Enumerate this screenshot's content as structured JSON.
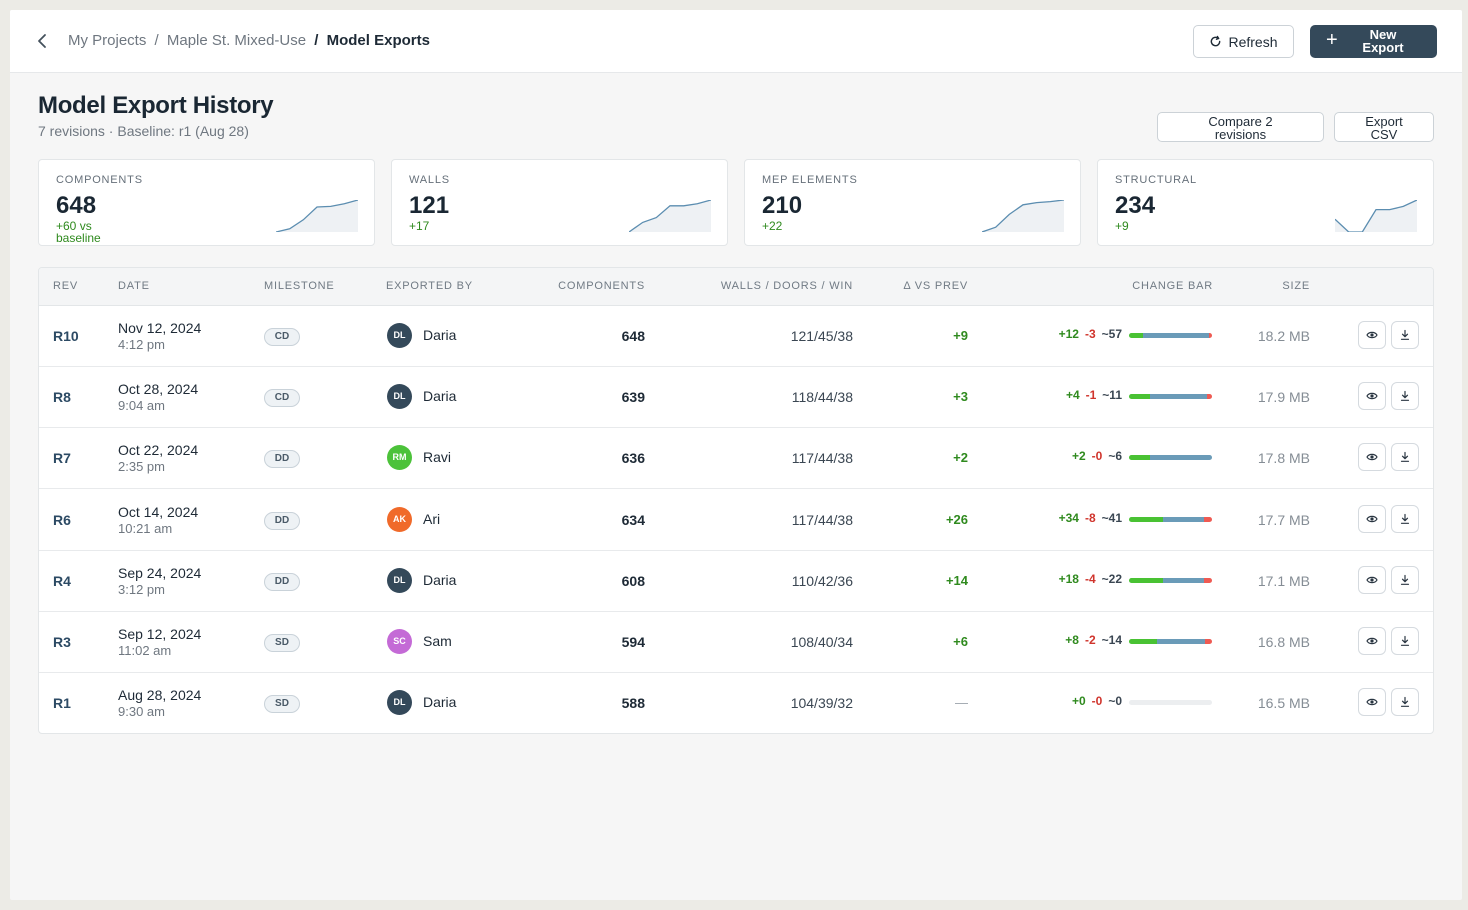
{
  "breadcrumb": {
    "items": [
      "My Projects",
      "Maple St. Mixed-Use"
    ],
    "separator": "/",
    "current": "Model Exports"
  },
  "header": {
    "refresh_label": "Refresh",
    "new_export_line1": "New",
    "new_export_line2": "Export"
  },
  "page": {
    "title": "Model Export History",
    "subtitle": "7 revisions · Baseline: r1 (Aug 28)",
    "compare_line1": "Compare 2",
    "compare_line2": "revisions",
    "csv_line1": "Export",
    "csv_line2": "CSV"
  },
  "stats": [
    {
      "label": "COMPONENTS",
      "value": "648",
      "delta_line1": "+60 vs",
      "delta_line2": "baseline",
      "trend": [
        0.0,
        0.1,
        0.38,
        0.78,
        0.8,
        0.88,
        1.0
      ]
    },
    {
      "label": "WALLS",
      "value": "121",
      "delta_line1": "+17",
      "delta_line2": "",
      "trend": [
        0.0,
        0.3,
        0.45,
        0.82,
        0.82,
        0.88,
        1.0
      ]
    },
    {
      "label": "MEP ELEMENTS",
      "value": "210",
      "delta_line1": "+22",
      "delta_line2": "",
      "trend": [
        0.0,
        0.15,
        0.55,
        0.85,
        0.92,
        0.95,
        1.0
      ]
    },
    {
      "label": "STRUCTURAL",
      "value": "234",
      "delta_line1": "+9",
      "delta_line2": "",
      "trend": [
        0.4,
        0.0,
        0.0,
        0.7,
        0.7,
        0.8,
        1.0
      ]
    }
  ],
  "table": {
    "headers": {
      "rev": "REV",
      "date": "DATE",
      "milestone": "MILESTONE",
      "exported_by": "EXPORTED BY",
      "components": "COMPONENTS",
      "wdw": "WALLS / DOORS / WIN",
      "delta_prev": "Δ VS PREV",
      "change_bar": "CHANGE BAR",
      "size": "SIZE"
    },
    "rows": [
      {
        "rev": "R10",
        "date": "Nov 12, 2024",
        "time": "4:12 pm",
        "milestone": "CD",
        "initials": "DL",
        "avatar_color": "#34495a",
        "name": "Daria",
        "components": "648",
        "wdw": "121/45/38",
        "delta_prev": "+9",
        "added": "+12",
        "removed": "-3",
        "modified": "~57",
        "add_n": 12,
        "rem_n": 3,
        "mod_n": 57,
        "size": "18.2 MB"
      },
      {
        "rev": "R8",
        "date": "Oct 28, 2024",
        "time": "9:04 am",
        "milestone": "CD",
        "initials": "DL",
        "avatar_color": "#34495a",
        "name": "Daria",
        "components": "639",
        "wdw": "118/44/38",
        "delta_prev": "+3",
        "added": "+4",
        "removed": "-1",
        "modified": "~11",
        "add_n": 4,
        "rem_n": 1,
        "mod_n": 11,
        "size": "17.9 MB"
      },
      {
        "rev": "R7",
        "date": "Oct 22, 2024",
        "time": "2:35 pm",
        "milestone": "DD",
        "initials": "RM",
        "avatar_color": "#4cc23a",
        "name": "Ravi",
        "components": "636",
        "wdw": "117/44/38",
        "delta_prev": "+2",
        "added": "+2",
        "removed": "-0",
        "modified": "~6",
        "add_n": 2,
        "rem_n": 0,
        "mod_n": 6,
        "size": "17.8 MB"
      },
      {
        "rev": "R6",
        "date": "Oct 14, 2024",
        "time": "10:21 am",
        "milestone": "DD",
        "initials": "AK",
        "avatar_color": "#f06a2a",
        "name": "Ari",
        "components": "634",
        "wdw": "117/44/38",
        "delta_prev": "+26",
        "added": "+34",
        "removed": "-8",
        "modified": "~41",
        "add_n": 34,
        "rem_n": 8,
        "mod_n": 41,
        "size": "17.7 MB"
      },
      {
        "rev": "R4",
        "date": "Sep 24, 2024",
        "time": "3:12 pm",
        "milestone": "DD",
        "initials": "DL",
        "avatar_color": "#34495a",
        "name": "Daria",
        "components": "608",
        "wdw": "110/42/36",
        "delta_prev": "+14",
        "added": "+18",
        "removed": "-4",
        "modified": "~22",
        "add_n": 18,
        "rem_n": 4,
        "mod_n": 22,
        "size": "17.1 MB"
      },
      {
        "rev": "R3",
        "date": "Sep 12, 2024",
        "time": "11:02 am",
        "milestone": "SD",
        "initials": "SC",
        "avatar_color": "#c46ad6",
        "name": "Sam",
        "components": "594",
        "wdw": "108/40/34",
        "delta_prev": "+6",
        "added": "+8",
        "removed": "-2",
        "modified": "~14",
        "add_n": 8,
        "rem_n": 2,
        "mod_n": 14,
        "size": "16.8 MB"
      },
      {
        "rev": "R1",
        "date": "Aug 28, 2024",
        "time": "9:30 am",
        "milestone": "SD",
        "initials": "DL",
        "avatar_color": "#34495a",
        "name": "Daria",
        "components": "588",
        "wdw": "104/39/32",
        "delta_prev": "—",
        "added": "+0",
        "removed": "-0",
        "modified": "~0",
        "add_n": 0,
        "rem_n": 0,
        "mod_n": 0,
        "size": "16.5 MB"
      }
    ]
  },
  "icons": {
    "back": "chevron-left-icon",
    "refresh": "refresh-icon",
    "new": "plus-icon",
    "view": "eye-icon",
    "download": "download-icon"
  },
  "colors": {
    "primary": "#34495a",
    "added": "#2f8a1e",
    "removed": "#d0342c",
    "bar_add": "#49c233",
    "bar_mod": "#6a9bb8",
    "bar_del": "#ef5a52"
  }
}
